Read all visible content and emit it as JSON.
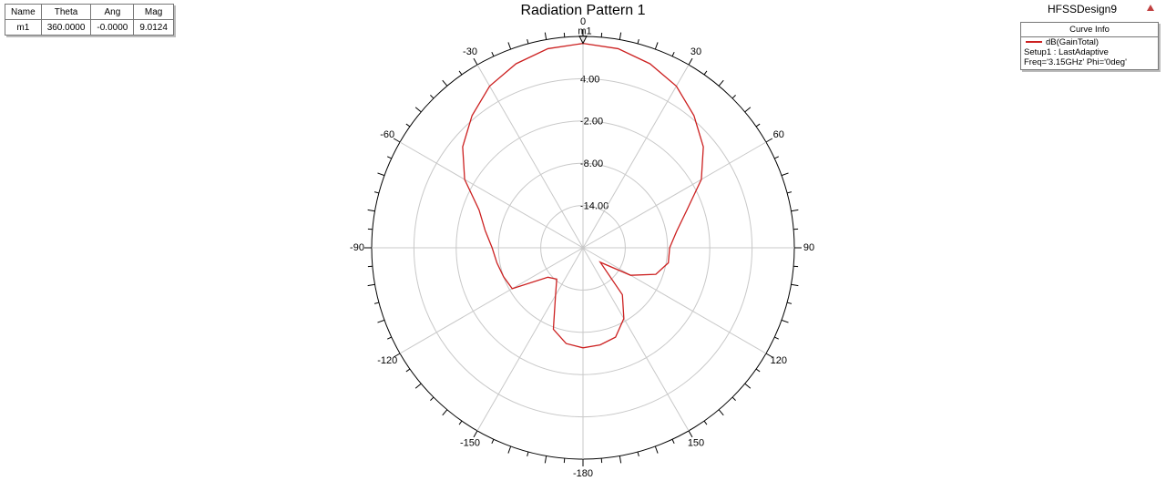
{
  "chart_data": {
    "type": "polar",
    "title": "Radiation Pattern 1",
    "design": "HFSSDesign9",
    "legend_title": "Curve Info",
    "legend_notes": [
      "Setup1 : LastAdaptive",
      "Freq='3.15GHz' Phi='0deg'"
    ],
    "marker_table": {
      "header": [
        "Name",
        "Theta",
        "Ang",
        "Mag"
      ],
      "rows": [
        [
          "m1",
          "360.0000",
          "-0.0000",
          "9.0124"
        ]
      ]
    },
    "markers": [
      {
        "name": "m1",
        "theta": 360,
        "value": 9.0124
      }
    ],
    "rlim": [
      -20,
      10
    ],
    "rticks": [
      {
        "value": -14,
        "label": "-14.00"
      },
      {
        "value": -8,
        "label": "-8.00"
      },
      {
        "value": -2,
        "label": "-2.00"
      },
      {
        "value": 4,
        "label": "4.00"
      }
    ],
    "thetaticks": [
      -180,
      -150,
      -120,
      -90,
      -60,
      -30,
      0,
      30,
      60,
      90,
      120,
      150
    ],
    "grid": true,
    "series": [
      {
        "name": "dB(GainTotal)",
        "color": "#cc2020",
        "x": [
          -180,
          -170,
          -160,
          -150,
          -140,
          -130,
          -120,
          -110,
          -100,
          -90,
          -80,
          -70,
          -60,
          -50,
          -40,
          -30,
          -20,
          -10,
          0,
          10,
          20,
          30,
          40,
          50,
          60,
          70,
          80,
          90,
          100,
          110,
          120,
          130,
          140,
          150,
          160,
          170,
          180
        ],
        "values": [
          -5.8,
          -6.2,
          -7.7,
          -12.2,
          -14.2,
          -13.5,
          -8.4,
          -8.0,
          -7.6,
          -7.1,
          -5.9,
          -4.3,
          -0.6,
          2.3,
          4.5,
          6.5,
          7.8,
          8.7,
          9.01,
          8.7,
          7.8,
          6.5,
          4.5,
          2.3,
          -0.6,
          -4.3,
          -6.5,
          -7.7,
          -7.7,
          -9.0,
          -12.2,
          -16.8,
          -11.3,
          -8.4,
          -6.5,
          -6.0,
          -5.8
        ]
      }
    ]
  }
}
